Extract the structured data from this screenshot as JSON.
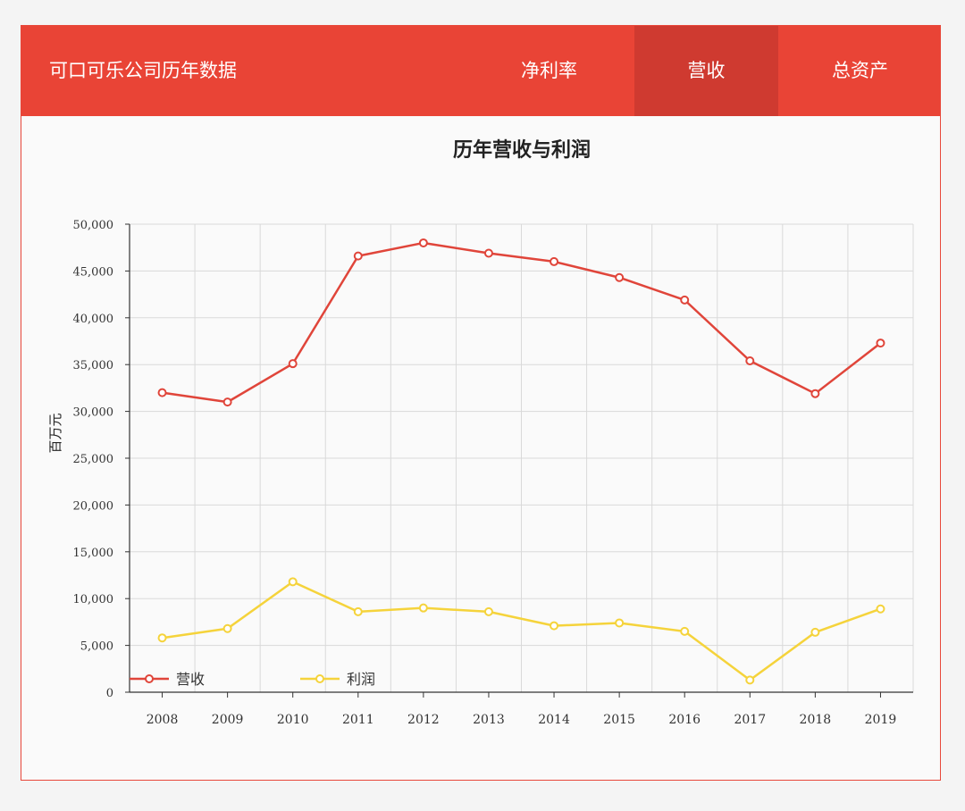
{
  "header": {
    "title": "可口可乐公司历年数据",
    "tabs": [
      {
        "label": "净利率",
        "active": false
      },
      {
        "label": "营收",
        "active": true
      },
      {
        "label": "总资产",
        "active": false
      }
    ]
  },
  "colors": {
    "header_bg": "#e94436",
    "tab_active_bg": "#cf3a30",
    "revenue": "#e0453a",
    "profit": "#f5d33b",
    "grid": "#d9d9d9",
    "axis": "#333333"
  },
  "chart_data": {
    "type": "line",
    "title": "历年营收与利润",
    "xlabel": "",
    "ylabel": "百万元",
    "x": [
      "2008",
      "2009",
      "2010",
      "2011",
      "2012",
      "2013",
      "2014",
      "2015",
      "2016",
      "2017",
      "2018",
      "2019"
    ],
    "ylim": [
      0,
      50000
    ],
    "yticks": [
      0,
      5000,
      10000,
      15000,
      20000,
      25000,
      30000,
      35000,
      40000,
      45000,
      50000
    ],
    "ytick_labels": [
      "0",
      "5,000",
      "10,000",
      "15,000",
      "20,000",
      "25,000",
      "30,000",
      "35,000",
      "40,000",
      "45,000",
      "50,000"
    ],
    "grid": true,
    "legend_position": "bottom-left",
    "series": [
      {
        "name": "营收",
        "color": "#e0453a",
        "values": [
          32000,
          31000,
          35100,
          46600,
          48000,
          46900,
          46000,
          44300,
          41900,
          35400,
          31900,
          37300
        ]
      },
      {
        "name": "利润",
        "color": "#f5d33b",
        "values": [
          5800,
          6800,
          11800,
          8600,
          9000,
          8600,
          7100,
          7400,
          6500,
          1300,
          6400,
          8900
        ]
      }
    ]
  }
}
